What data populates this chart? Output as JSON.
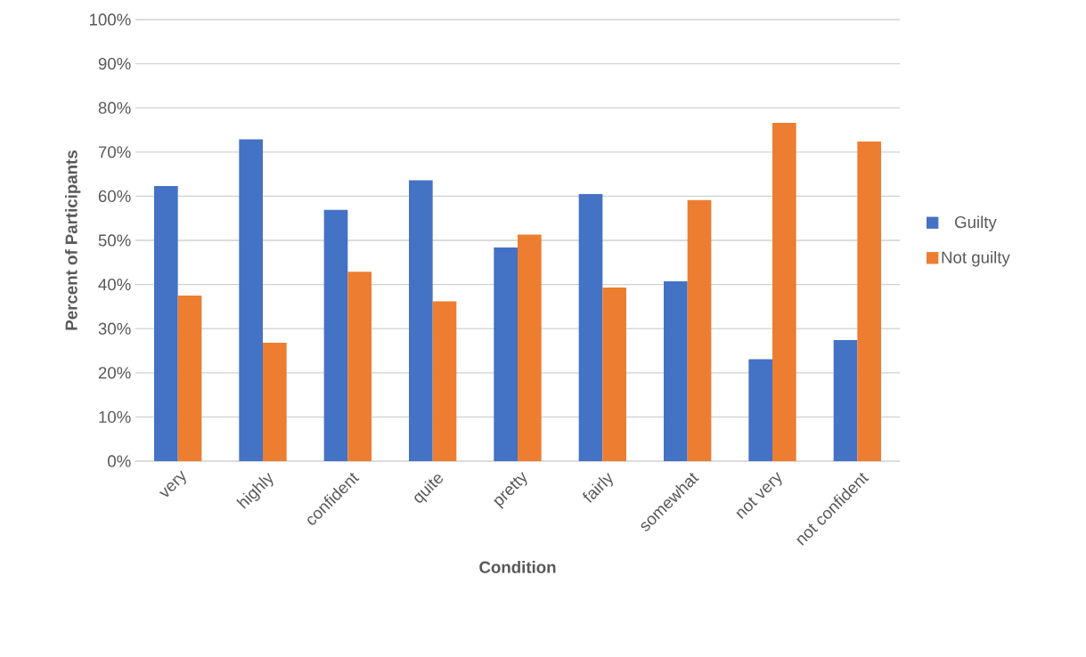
{
  "chart_data": {
    "type": "bar",
    "xlabel": "Condition",
    "ylabel": "Percent of Participants",
    "categories": [
      "very",
      "highly",
      "confident",
      "quite",
      "pretty",
      "fairly",
      "somewhat",
      "not very",
      "not confident"
    ],
    "series": [
      {
        "name": "Guilty",
        "color": "#4472c4",
        "values": [
          62.3,
          72.9,
          56.9,
          63.6,
          48.4,
          60.5,
          40.7,
          23.1,
          27.4
        ]
      },
      {
        "name": "Not guilty",
        "color": "#ed7d31",
        "values": [
          37.5,
          26.8,
          42.9,
          36.2,
          51.3,
          39.3,
          59.1,
          76.6,
          72.4
        ]
      }
    ],
    "ylim": [
      0,
      100
    ],
    "yticks": [
      {
        "value": 0,
        "label": "0%"
      },
      {
        "value": 10,
        "label": "10%"
      },
      {
        "value": 20,
        "label": "20%"
      },
      {
        "value": 30,
        "label": "30%"
      },
      {
        "value": 40,
        "label": "40%"
      },
      {
        "value": 50,
        "label": "50%"
      },
      {
        "value": 60,
        "label": "60%"
      },
      {
        "value": 70,
        "label": "70%"
      },
      {
        "value": 80,
        "label": "80%"
      },
      {
        "value": 90,
        "label": "90%"
      },
      {
        "value": 100,
        "label": "100%"
      }
    ],
    "grid": "y",
    "legend": "right"
  }
}
